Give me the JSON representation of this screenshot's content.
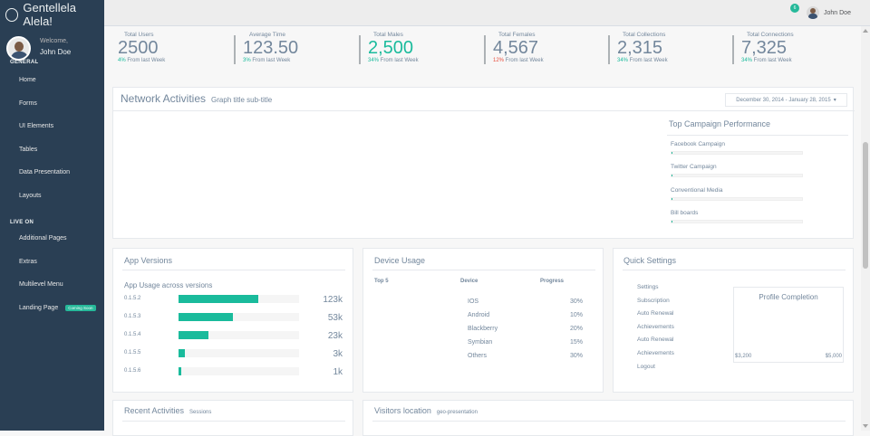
{
  "sidebar": {
    "brand": "Gentellela Alela!",
    "welcome": "Welcome,",
    "user_name": "John Doe",
    "sections": [
      {
        "title": "GENERAL",
        "items": [
          "Home",
          "Forms",
          "UI Elements",
          "Tables",
          "Data Presentation",
          "Layouts"
        ]
      },
      {
        "title": "LIVE ON",
        "items": [
          "Additional Pages",
          "Extras",
          "Multilevel Menu",
          "Landing Page"
        ]
      }
    ],
    "coming_soon": "Coming Soon"
  },
  "topnav": {
    "notification_count": "6",
    "user_name": "John Doe"
  },
  "tiles": [
    {
      "label": "Total Users",
      "value": "2500",
      "pct": "4%",
      "sub": " From last Week",
      "pct_color": "green",
      "value_green": false
    },
    {
      "label": "Average Time",
      "value": "123.50",
      "pct": "3%",
      "sub": " From last Week",
      "pct_color": "green",
      "value_green": false
    },
    {
      "label": "Total Males",
      "value": "2,500",
      "pct": "34%",
      "sub": " From last Week",
      "pct_color": "green",
      "value_green": true
    },
    {
      "label": "Total Females",
      "value": "4,567",
      "pct": "12%",
      "sub": " From last Week",
      "pct_color": "red",
      "value_green": false
    },
    {
      "label": "Total Collections",
      "value": "2,315",
      "pct": "34%",
      "sub": " From last Week",
      "pct_color": "green",
      "value_green": false
    },
    {
      "label": "Total Connections",
      "value": "7,325",
      "pct": "34%",
      "sub": " From last Week",
      "pct_color": "green",
      "value_green": false
    }
  ],
  "network": {
    "title": "Network Activities",
    "subtitle": "Graph title sub-title",
    "date_range": "December 30, 2014 - January 28, 2015",
    "campaign_title": "Top Campaign Performance",
    "campaigns": [
      {
        "label": "Facebook Campaign",
        "progress": 0.01
      },
      {
        "label": "Twitter Campaign",
        "progress": 0.01
      },
      {
        "label": "Conventional Media",
        "progress": 0.01
      },
      {
        "label": "Bill boards",
        "progress": 0.01
      }
    ]
  },
  "app_versions": {
    "title": "App Versions",
    "subtitle": "App Usage across versions",
    "rows": [
      {
        "version": "0.1.5.2",
        "value": "123k",
        "fraction": 0.66
      },
      {
        "version": "0.1.5.3",
        "value": "53k",
        "fraction": 0.45
      },
      {
        "version": "0.1.5.4",
        "value": "23k",
        "fraction": 0.25
      },
      {
        "version": "0.1.5.5",
        "value": "3k",
        "fraction": 0.05
      },
      {
        "version": "0.1.5.6",
        "value": "1k",
        "fraction": 0.02
      }
    ]
  },
  "device_usage": {
    "title": "Device Usage",
    "col_top": "Top 5",
    "col_device": "Device",
    "col_progress": "Progress",
    "rows": [
      {
        "device": "IOS",
        "progress": "30%"
      },
      {
        "device": "Android",
        "progress": "10%"
      },
      {
        "device": "Blackberry",
        "progress": "20%"
      },
      {
        "device": "Symbian",
        "progress": "15%"
      },
      {
        "device": "Others",
        "progress": "30%"
      }
    ]
  },
  "quick_settings": {
    "title": "Quick Settings",
    "items": [
      "Settings",
      "Subscription",
      "Auto Renewal",
      "Achievements",
      "Auto Renewal",
      "Achievements",
      "Logout"
    ],
    "profile_title": "Profile Completion",
    "min": "$3,200",
    "max": "$5,000"
  },
  "recent": {
    "title": "Recent Activities",
    "small": "Sessions"
  },
  "visitors": {
    "title": "Visitors location",
    "small": "geo-presentation"
  }
}
